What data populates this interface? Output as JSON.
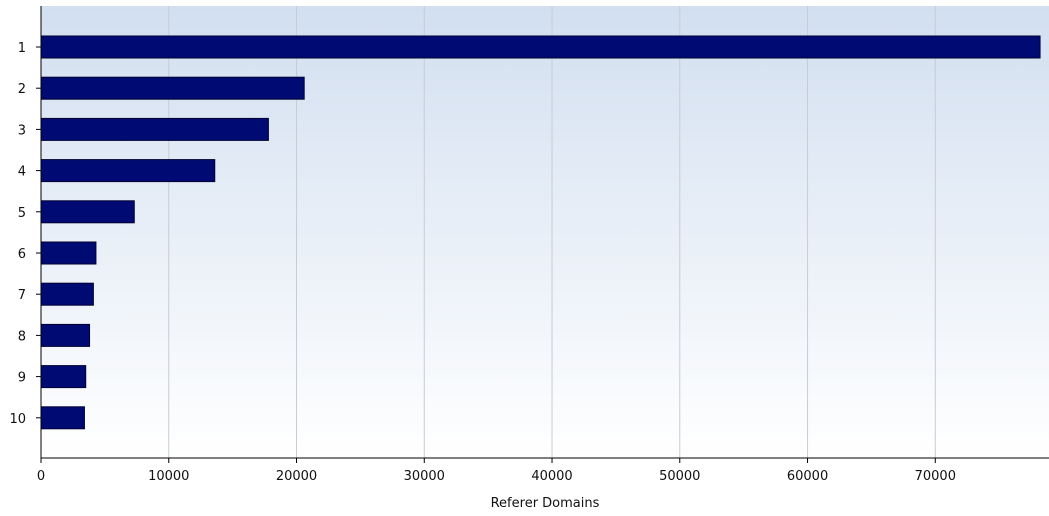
{
  "chart_data": {
    "type": "bar",
    "orientation": "horizontal",
    "categories": [
      "1",
      "2",
      "3",
      "4",
      "5",
      "6",
      "7",
      "8",
      "9",
      "10"
    ],
    "values": [
      78200,
      20600,
      17800,
      13600,
      7300,
      4300,
      4100,
      3800,
      3500,
      3400
    ],
    "xlabel": "Referer Domains",
    "ylabel": "",
    "xlim": [
      0,
      78900
    ],
    "xticks": [
      0,
      10000,
      20000,
      30000,
      40000,
      50000,
      60000,
      70000
    ],
    "grid": true,
    "legend": "none",
    "colors": {
      "bar_fill": "#000a73",
      "bar_stroke": "#000033",
      "bg_top": "#d2dff0",
      "bg_bottom": "#ffffff",
      "grid": "#c8ccd4",
      "axis": "#000000"
    }
  }
}
